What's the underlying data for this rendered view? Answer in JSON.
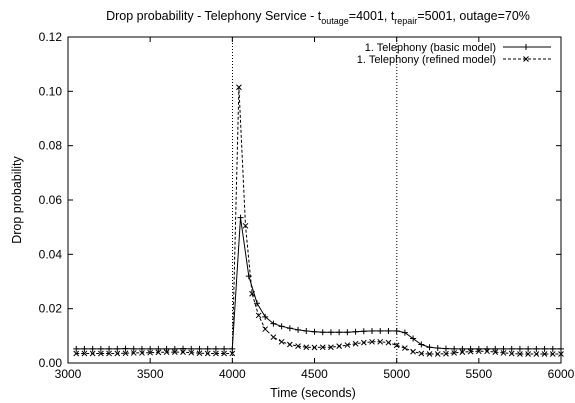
{
  "chart_data": {
    "type": "line",
    "title": {
      "prefix": "Drop probability - Telephony Service - t",
      "outage_sub": "outage",
      "outage_value": "=4001, t",
      "repair_sub": "repair",
      "repair_value": "=5001, outage=70%"
    },
    "xlabel": "Time (seconds)",
    "ylabel": "Drop probability",
    "xlim": [
      3000,
      6000
    ],
    "ylim": [
      0,
      0.12
    ],
    "x_ticks": [
      "3000",
      "3500",
      "4000",
      "4500",
      "5000",
      "5500",
      "6000"
    ],
    "y_ticks": [
      "0.00",
      "0.02",
      "0.04",
      "0.06",
      "0.08",
      "0.10",
      "0.12"
    ],
    "vertical_lines": [
      4001,
      5001
    ],
    "grid": false,
    "legend_position": "top-right",
    "series": [
      {
        "name": "1. Telephony (basic model)",
        "marker": "plus",
        "line": "solid",
        "color": "#000000",
        "x": [
          3050,
          3100,
          3150,
          3200,
          3250,
          3300,
          3350,
          3400,
          3450,
          3500,
          3550,
          3600,
          3650,
          3700,
          3750,
          3800,
          3850,
          3900,
          3950,
          4000,
          4050,
          4100,
          4150,
          4200,
          4250,
          4300,
          4350,
          4400,
          4450,
          4500,
          4550,
          4600,
          4650,
          4700,
          4750,
          4800,
          4850,
          4900,
          4950,
          5000,
          5050,
          5100,
          5150,
          5200,
          5250,
          5300,
          5350,
          5400,
          5450,
          5500,
          5550,
          5600,
          5650,
          5700,
          5750,
          5800,
          5850,
          5900,
          5950,
          6000
        ],
        "y": [
          0.0052,
          0.0052,
          0.0052,
          0.0052,
          0.0052,
          0.0052,
          0.0053,
          0.0052,
          0.0052,
          0.0052,
          0.0052,
          0.0052,
          0.0052,
          0.0053,
          0.0052,
          0.0052,
          0.0052,
          0.0052,
          0.0052,
          0.0052,
          0.0535,
          0.032,
          0.022,
          0.017,
          0.0145,
          0.0135,
          0.0128,
          0.0122,
          0.0118,
          0.0115,
          0.0113,
          0.0113,
          0.0113,
          0.0113,
          0.0115,
          0.0117,
          0.0118,
          0.0118,
          0.0118,
          0.0118,
          0.0112,
          0.009,
          0.0068,
          0.0058,
          0.0055,
          0.0053,
          0.0052,
          0.0052,
          0.0052,
          0.0052,
          0.0052,
          0.0052,
          0.0052,
          0.0052,
          0.0052,
          0.0052,
          0.0052,
          0.0052,
          0.0052,
          0.0052
        ]
      },
      {
        "name": "1. Telephony (refined model)",
        "marker": "cross",
        "line": "dashed",
        "color": "#000000",
        "x": [
          3050,
          3100,
          3150,
          3200,
          3250,
          3300,
          3350,
          3400,
          3450,
          3500,
          3550,
          3600,
          3650,
          3700,
          3750,
          3800,
          3850,
          3900,
          3950,
          4000,
          4040,
          4080,
          4120,
          4160,
          4200,
          4250,
          4300,
          4350,
          4400,
          4450,
          4500,
          4550,
          4600,
          4650,
          4700,
          4750,
          4800,
          4850,
          4900,
          4950,
          5000,
          5050,
          5100,
          5150,
          5200,
          5250,
          5300,
          5350,
          5400,
          5450,
          5500,
          5550,
          5600,
          5650,
          5700,
          5750,
          5800,
          5850,
          5900,
          5950,
          6000
        ],
        "y": [
          0.0035,
          0.0035,
          0.0035,
          0.0035,
          0.0035,
          0.0035,
          0.0036,
          0.0037,
          0.0037,
          0.0038,
          0.0039,
          0.004,
          0.004,
          0.004,
          0.0038,
          0.0036,
          0.0035,
          0.0035,
          0.0035,
          0.0035,
          0.1015,
          0.0505,
          0.0255,
          0.0175,
          0.0125,
          0.0095,
          0.0078,
          0.0068,
          0.0062,
          0.0058,
          0.0057,
          0.0058,
          0.0058,
          0.0062,
          0.0066,
          0.0071,
          0.0075,
          0.0078,
          0.0078,
          0.0075,
          0.0065,
          0.0055,
          0.0042,
          0.0035,
          0.0033,
          0.0033,
          0.0034,
          0.0037,
          0.004,
          0.0042,
          0.0043,
          0.0043,
          0.004,
          0.0037,
          0.0035,
          0.0033,
          0.0033,
          0.0033,
          0.0033,
          0.0033,
          0.0033
        ]
      }
    ]
  }
}
